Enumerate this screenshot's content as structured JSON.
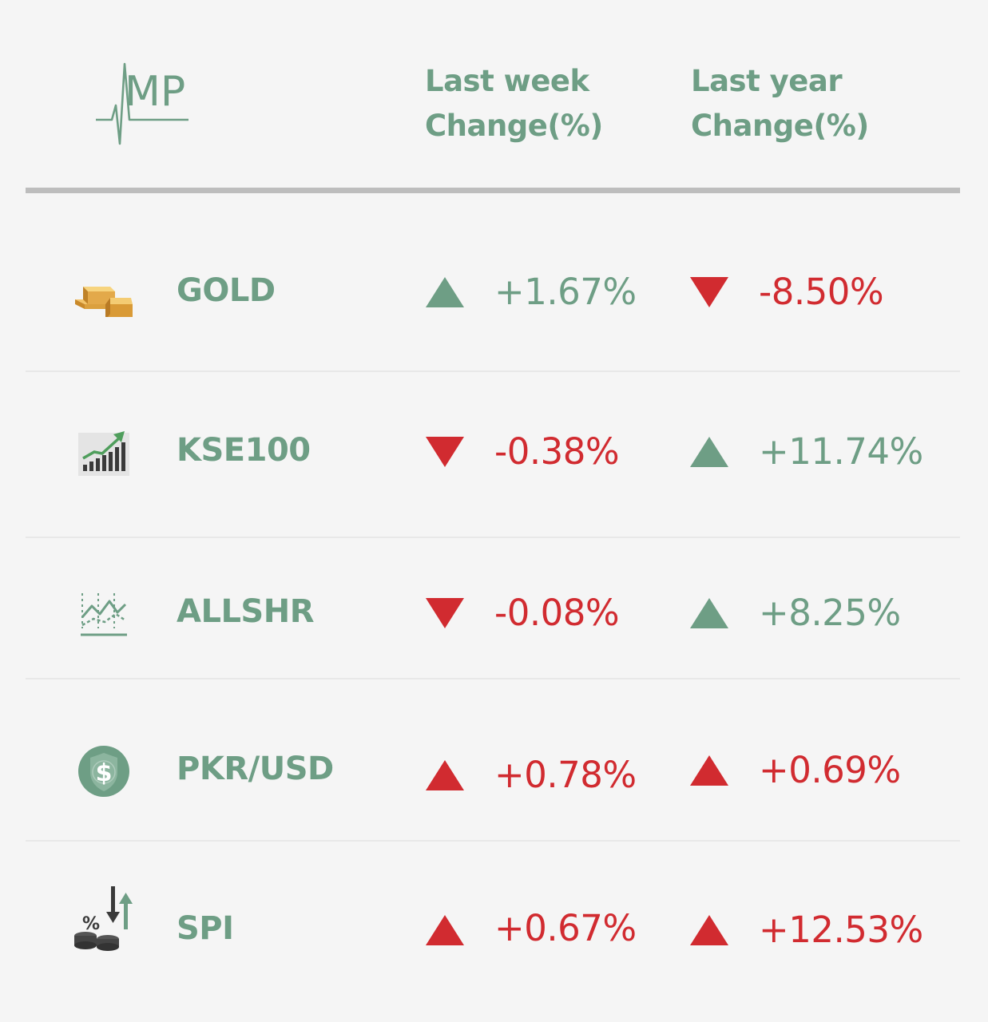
{
  "logo": {
    "text": "MP",
    "color": "#6e9e85"
  },
  "header": {
    "week_line1": "Last week",
    "week_line2": "Change(%)",
    "year_line1": "Last year",
    "year_line2": "Change(%)"
  },
  "colors": {
    "green": "#6e9e85",
    "red": "#d12b30",
    "rule": "#bdbdbd"
  },
  "rows": [
    {
      "name": "GOLD",
      "icon": "gold-bars-icon",
      "week": {
        "value": "+1.67%",
        "arrow": "up",
        "color": "green"
      },
      "year": {
        "value": "-8.50%",
        "arrow": "down",
        "color": "red"
      }
    },
    {
      "name": "KSE100",
      "icon": "bar-chart-growth-icon",
      "week": {
        "value": "-0.38%",
        "arrow": "down",
        "color": "red"
      },
      "year": {
        "value": "+11.74%",
        "arrow": "up",
        "color": "green"
      }
    },
    {
      "name": "ALLSHR",
      "icon": "line-chart-icon",
      "week": {
        "value": "-0.08%",
        "arrow": "down",
        "color": "red"
      },
      "year": {
        "value": "+8.25%",
        "arrow": "up",
        "color": "green"
      }
    },
    {
      "name": "PKR/USD",
      "icon": "dollar-coin-icon",
      "week": {
        "value": "+0.78%",
        "arrow": "up",
        "color": "red"
      },
      "year": {
        "value": "+0.69%",
        "arrow": "up",
        "color": "red"
      }
    },
    {
      "name": "SPI",
      "icon": "percent-coins-arrows-icon",
      "week": {
        "value": "+0.67%",
        "arrow": "up",
        "color": "red"
      },
      "year": {
        "value": "+12.53%",
        "arrow": "up",
        "color": "red"
      }
    }
  ]
}
